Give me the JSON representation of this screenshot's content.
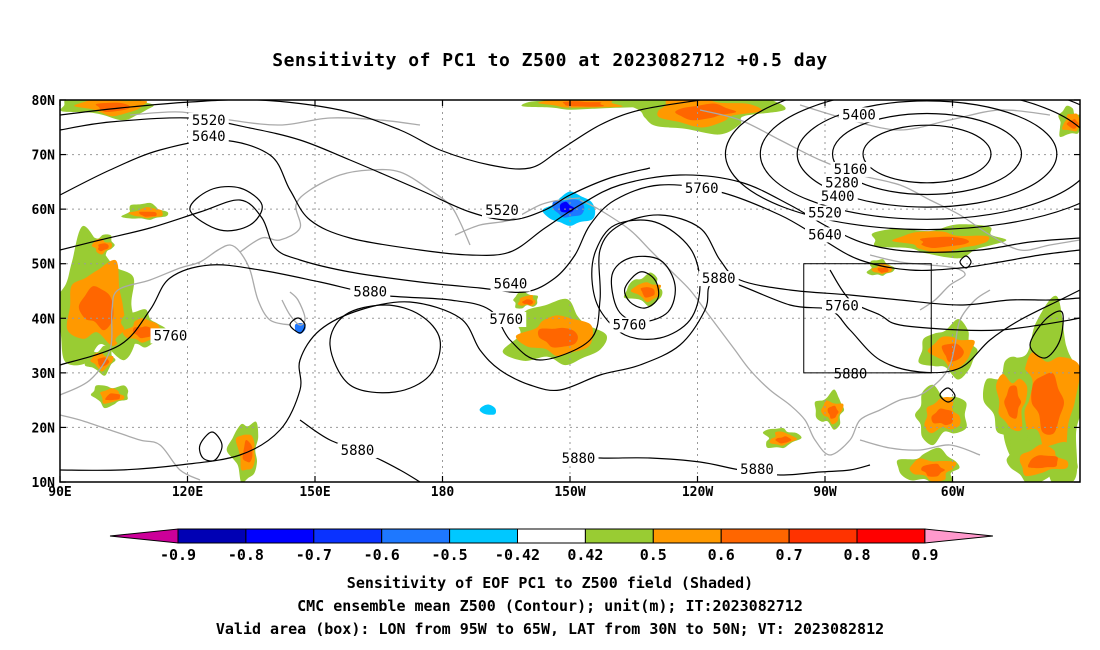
{
  "title": "Sensitivity of PC1 to Z500 at 2023082712 +0.5 day",
  "map": {
    "lat_labels": [
      "80N",
      "70N",
      "60N",
      "50N",
      "40N",
      "30N",
      "20N",
      "10N"
    ],
    "lon_labels": [
      "90E",
      "120E",
      "150E",
      "180",
      "150W",
      "120W",
      "90W",
      "60W"
    ],
    "contour_color": "#000000",
    "coastline_color": "#aaaaaa",
    "grid": "dotted",
    "contour_labels": [
      {
        "text": "5520",
        "lon": 125,
        "lat": 76
      },
      {
        "text": "5640",
        "lon": 125,
        "lat": 73
      },
      {
        "text": "5400",
        "lon": 278,
        "lat": 77
      },
      {
        "text": "5160",
        "lon": 276,
        "lat": 67
      },
      {
        "text": "5280",
        "lon": 274,
        "lat": 64.5
      },
      {
        "text": "5400",
        "lon": 273,
        "lat": 62
      },
      {
        "text": "5520",
        "lon": 270,
        "lat": 59
      },
      {
        "text": "5640",
        "lon": 270,
        "lat": 55
      },
      {
        "text": "5760",
        "lon": 241,
        "lat": 63.5
      },
      {
        "text": "5520",
        "lon": 194,
        "lat": 59.5
      },
      {
        "text": "5640",
        "lon": 196,
        "lat": 46
      },
      {
        "text": "5760",
        "lon": 195,
        "lat": 39.5
      },
      {
        "text": "5760",
        "lon": 224,
        "lat": 38.5
      },
      {
        "text": "5880",
        "lon": 245,
        "lat": 47
      },
      {
        "text": "5880",
        "lon": 163,
        "lat": 44.5
      },
      {
        "text": "5760",
        "lon": 116,
        "lat": 36.5
      },
      {
        "text": "5760",
        "lon": 274,
        "lat": 42
      },
      {
        "text": "5880",
        "lon": 276,
        "lat": 29.5
      },
      {
        "text": "5880",
        "lon": 160,
        "lat": 15.5
      },
      {
        "text": "5880",
        "lon": 212,
        "lat": 14
      },
      {
        "text": "5880",
        "lon": 254,
        "lat": 12
      }
    ],
    "valid_box": {
      "lon_min": 265,
      "lon_max": 295,
      "lat_min": 30,
      "lat_max": 50
    }
  },
  "colorbar": {
    "levels": [
      "-0.9",
      "-0.8",
      "-0.7",
      "-0.6",
      "-0.5",
      "-0.42",
      "0.42",
      "0.5",
      "0.6",
      "0.7",
      "0.8",
      "0.9"
    ],
    "colors": [
      "#cc0099",
      "#0000b4",
      "#0000ff",
      "#0a32ff",
      "#1e78ff",
      "#00c8ff",
      "#ffffff",
      "#99cc33",
      "#ff9900",
      "#ff6600",
      "#ff3300",
      "#ff0000",
      "#ff99cc"
    ]
  },
  "captions": [
    "Sensitivity of EOF PC1 to Z500 field (Shaded)",
    "CMC ensemble mean Z500 (Contour); unit(m); IT:2023082712",
    "Valid area (box): LON from 95W to 65W, LAT from 30N to 50N; VT: 2023082812"
  ]
}
